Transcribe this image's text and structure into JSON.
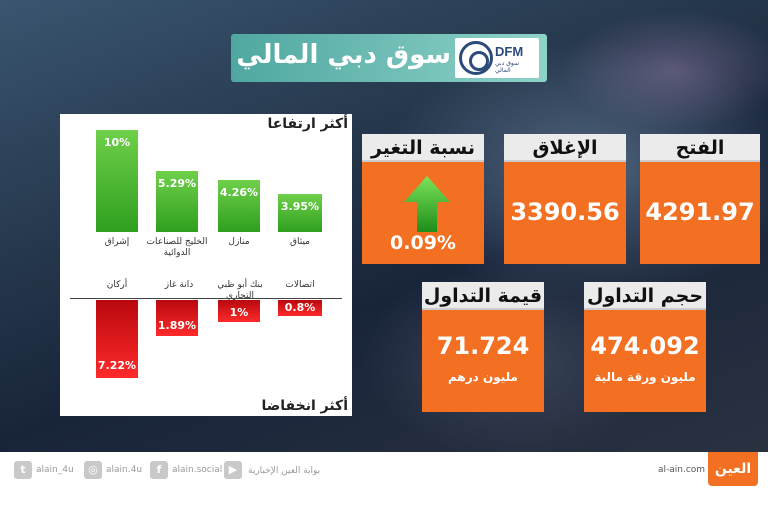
{
  "title": "سوق دبي المالي",
  "logo": {
    "abbr": "DFM",
    "sub": "سوق دبي المالي"
  },
  "gainers": {
    "label": "أكثر ارتفاعا",
    "items": [
      {
        "name": "إشراق",
        "change": "10%"
      },
      {
        "name": "الخليج للصناعات الدوائية",
        "change": "5.29%"
      },
      {
        "name": "منازل",
        "change": "4.26%"
      },
      {
        "name": "ميثاق",
        "change": "3.95%"
      }
    ]
  },
  "losers": {
    "label": "أكثر انخفاضا",
    "items": [
      {
        "name": "أركان",
        "change": "7.22%"
      },
      {
        "name": "دانة غاز",
        "change": "1.89%"
      },
      {
        "name": "بنك أبو ظبي التجاري",
        "change": "1%"
      },
      {
        "name": "اتصالات",
        "change": "0.8%"
      }
    ]
  },
  "stats": {
    "change_pct": {
      "label": "نسبة التغير",
      "value": "0.09%"
    },
    "close": {
      "label": "الإغلاق",
      "value": "3390.56"
    },
    "open": {
      "label": "الفتح",
      "value": "4291.97"
    },
    "trade_value": {
      "label": "قيمة التداول",
      "value": "71.724",
      "unit": "مليون درهم"
    },
    "trade_volume": {
      "label": "حجم التداول",
      "value": "474.092",
      "unit": "مليون ورقة مالية"
    }
  },
  "colors": {
    "accent": "#f36f21",
    "up": "#3aa82a",
    "down": "#d0121a",
    "title_bg": "#6fbfb6"
  },
  "footer": {
    "twitter": "alain_4u",
    "instagram": "alain.4u",
    "facebook": "alain.social",
    "youtube_label": "بوابة العين الإخبارية",
    "site": "al-ain.com",
    "brand": "العين"
  }
}
